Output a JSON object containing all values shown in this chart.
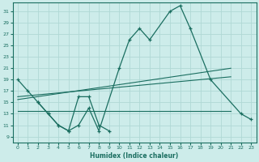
{
  "xlabel": "Humidex (Indice chaleur)",
  "xlim": [
    -0.5,
    23.5
  ],
  "ylim": [
    8.0,
    32.5
  ],
  "yticks": [
    9,
    11,
    13,
    15,
    17,
    19,
    21,
    23,
    25,
    27,
    29,
    31
  ],
  "xticks": [
    0,
    1,
    2,
    3,
    4,
    5,
    6,
    7,
    8,
    9,
    10,
    11,
    12,
    13,
    14,
    15,
    16,
    17,
    18,
    19,
    20,
    21,
    22,
    23
  ],
  "bg_color": "#cdecea",
  "grid_color": "#b0d8d5",
  "line_color": "#1a6e60",
  "main_curve": {
    "x": [
      0,
      1,
      2,
      3,
      4,
      5,
      6,
      7,
      8,
      10,
      11,
      12,
      13,
      15,
      16,
      17,
      19,
      22,
      23
    ],
    "y": [
      19,
      17,
      15,
      13,
      11,
      10,
      11,
      14,
      10,
      21,
      26,
      28,
      26,
      31,
      32,
      28,
      19,
      13,
      12
    ]
  },
  "second_curve": {
    "x": [
      2,
      3,
      4,
      5,
      6,
      7,
      8,
      9
    ],
    "y": [
      15,
      13,
      11,
      10,
      16,
      16,
      11,
      10
    ]
  },
  "trend_upper": {
    "x": [
      0,
      21
    ],
    "y": [
      15.5,
      21
    ]
  },
  "trend_lower": {
    "x": [
      0,
      21
    ],
    "y": [
      13.5,
      13.5
    ]
  },
  "trend_upper2": {
    "x": [
      0,
      21
    ],
    "y": [
      16.0,
      19.5
    ]
  }
}
